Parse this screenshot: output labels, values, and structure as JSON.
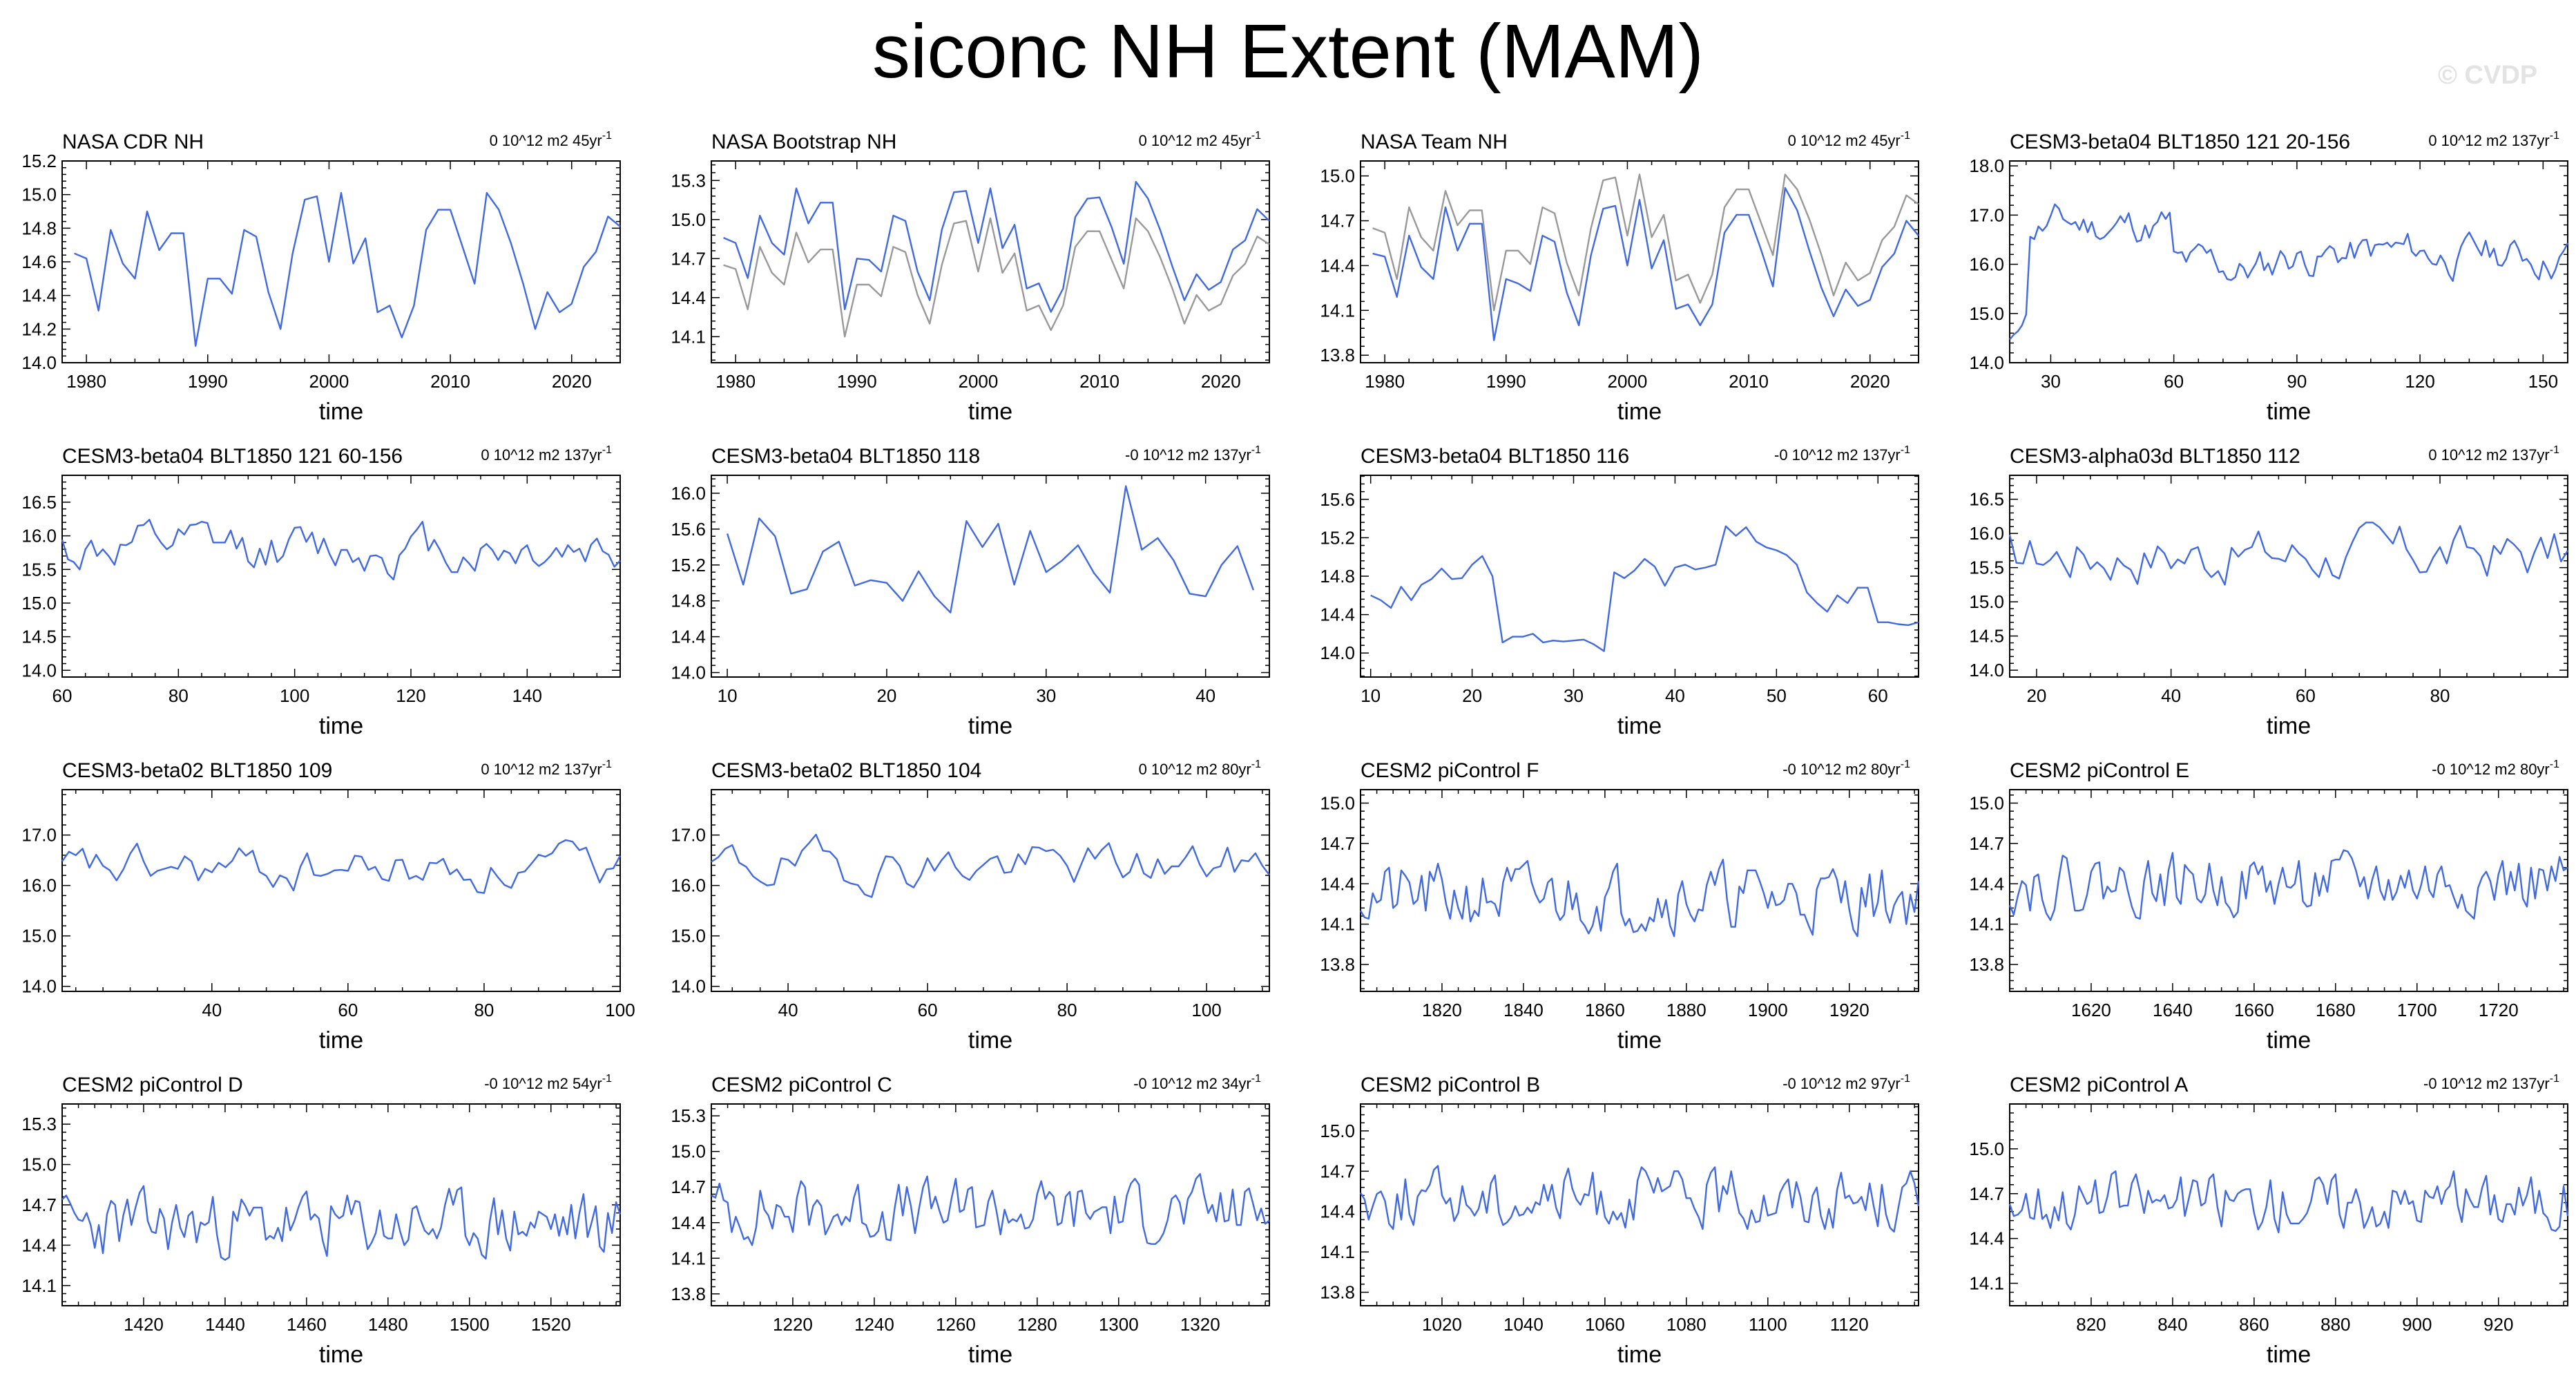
{
  "title": "siconc NH Extent (MAM)",
  "watermark": "© CVDP",
  "xlabel": "time",
  "colors": {
    "line": "#4169e1",
    "obs_overlay": "#999999"
  },
  "chart_data": [
    {
      "type": "line",
      "title": "NASA CDR NH",
      "trend": "0 10^12 m2 45yr",
      "trend_exp": "-1",
      "xlim": [
        1978,
        2024
      ],
      "xticks": [
        1980,
        1990,
        2000,
        2010,
        2020
      ],
      "ylim": [
        14.0,
        15.2
      ],
      "yticks": [
        "14.0",
        "14.2",
        "14.4",
        "14.6",
        "14.8",
        "15.0",
        "15.2"
      ],
      "series": [
        {
          "x0": 1979,
          "values": [
            14.65,
            14.62,
            14.31,
            14.79,
            14.59,
            14.5,
            14.9,
            14.67,
            14.77,
            14.77,
            14.1,
            14.5,
            14.5,
            14.41,
            14.79,
            14.75,
            14.42,
            14.2,
            14.65,
            14.97,
            14.99,
            14.6,
            15.01,
            14.59,
            14.74,
            14.3,
            14.34,
            14.15,
            14.34,
            14.79,
            14.91,
            14.91,
            14.69,
            14.47,
            15.01,
            14.91,
            14.71,
            14.47,
            14.2,
            14.42,
            14.3,
            14.35,
            14.57,
            14.66,
            14.87,
            14.81
          ]
        }
      ]
    },
    {
      "type": "line",
      "title": "NASA Bootstrap NH",
      "trend": "0 10^12 m2 45yr",
      "trend_exp": "-1",
      "xlim": [
        1978,
        2024
      ],
      "xticks": [
        1980,
        1990,
        2000,
        2010,
        2020
      ],
      "ylim": [
        13.9,
        15.45
      ],
      "yticks": [
        "14.1",
        "14.4",
        "14.7",
        "15.0",
        "15.3"
      ],
      "series": [
        {
          "x0": 1979,
          "values": [
            14.86,
            14.82,
            14.55,
            15.03,
            14.82,
            14.73,
            15.24,
            14.97,
            15.13,
            15.13,
            14.31,
            14.7,
            14.69,
            14.6,
            15.03,
            14.99,
            14.6,
            14.38,
            14.92,
            15.21,
            15.22,
            14.82,
            15.24,
            14.78,
            14.96,
            14.47,
            14.51,
            14.29,
            14.47,
            15.02,
            15.16,
            15.17,
            14.94,
            14.66,
            15.29,
            15.16,
            14.92,
            14.64,
            14.38,
            14.58,
            14.46,
            14.52,
            14.77,
            14.84,
            15.08,
            14.99
          ]
        },
        {
          "x0": 1979,
          "overlay": true,
          "values": [
            14.65,
            14.62,
            14.31,
            14.79,
            14.59,
            14.5,
            14.9,
            14.67,
            14.77,
            14.77,
            14.1,
            14.5,
            14.5,
            14.41,
            14.79,
            14.75,
            14.42,
            14.2,
            14.65,
            14.97,
            14.99,
            14.6,
            15.01,
            14.59,
            14.74,
            14.3,
            14.34,
            14.15,
            14.34,
            14.79,
            14.91,
            14.91,
            14.69,
            14.47,
            15.01,
            14.91,
            14.71,
            14.47,
            14.2,
            14.42,
            14.3,
            14.35,
            14.57,
            14.66,
            14.87,
            14.81
          ]
        }
      ]
    },
    {
      "type": "line",
      "title": "NASA Team NH",
      "trend": "0 10^12 m2 45yr",
      "trend_exp": "-1",
      "xlim": [
        1978,
        2024
      ],
      "xticks": [
        1980,
        1990,
        2000,
        2010,
        2020
      ],
      "ylim": [
        13.75,
        15.1
      ],
      "yticks": [
        "13.8",
        "14.1",
        "14.4",
        "14.7",
        "15.0"
      ],
      "series": [
        {
          "x0": 1979,
          "values": [
            14.48,
            14.46,
            14.19,
            14.6,
            14.39,
            14.31,
            14.79,
            14.5,
            14.68,
            14.68,
            13.9,
            14.31,
            14.28,
            14.23,
            14.6,
            14.56,
            14.22,
            14.0,
            14.47,
            14.78,
            14.8,
            14.4,
            14.84,
            14.38,
            14.57,
            14.11,
            14.14,
            14.0,
            14.14,
            14.62,
            14.74,
            14.74,
            14.51,
            14.26,
            14.92,
            14.77,
            14.5,
            14.25,
            14.06,
            14.24,
            14.13,
            14.17,
            14.39,
            14.48,
            14.7,
            14.6
          ]
        },
        {
          "x0": 1979,
          "overlay": true,
          "values": [
            14.65,
            14.62,
            14.31,
            14.79,
            14.59,
            14.5,
            14.9,
            14.67,
            14.77,
            14.77,
            14.1,
            14.5,
            14.5,
            14.41,
            14.79,
            14.75,
            14.42,
            14.2,
            14.65,
            14.97,
            14.99,
            14.6,
            15.01,
            14.59,
            14.74,
            14.3,
            14.34,
            14.15,
            14.34,
            14.79,
            14.91,
            14.91,
            14.69,
            14.47,
            15.01,
            14.91,
            14.71,
            14.47,
            14.2,
            14.42,
            14.3,
            14.35,
            14.57,
            14.66,
            14.87,
            14.81
          ]
        }
      ]
    },
    {
      "type": "line",
      "title": "CESM3-beta04 BLT1850 121 20-156",
      "trend": "0 10^12 m2 137yr",
      "trend_exp": "-1",
      "xlim": [
        20,
        156
      ],
      "xticks": [
        30,
        60,
        90,
        120,
        150
      ],
      "ylim": [
        14.0,
        18.1
      ],
      "yticks": [
        "14.0",
        "15.0",
        "16.0",
        "17.0",
        "18.0"
      ],
      "series": [
        {
          "x0": 20,
          "seed": 11,
          "kind": "cesm121a",
          "values": []
        }
      ]
    },
    {
      "type": "line",
      "title": "CESM3-beta04 BLT1850 121 60-156",
      "trend": "0 10^12 m2 137yr",
      "trend_exp": "-1",
      "xlim": [
        60,
        156
      ],
      "xticks": [
        60,
        80,
        100,
        120,
        140
      ],
      "ylim": [
        13.9,
        16.9
      ],
      "yticks": [
        "14.0",
        "14.5",
        "15.0",
        "15.5",
        "16.0",
        "16.5"
      ],
      "series": [
        {
          "x0": 60,
          "seed": 12,
          "kind": "cesm121b",
          "values": []
        }
      ]
    },
    {
      "type": "line",
      "title": "CESM3-beta04 BLT1850 118",
      "trend": "-0 10^12 m2 137yr",
      "trend_exp": "-1",
      "xlim": [
        9,
        44
      ],
      "xticks": [
        10,
        20,
        30,
        40
      ],
      "ylim": [
        13.95,
        16.2
      ],
      "yticks": [
        "14.0",
        "14.4",
        "14.8",
        "15.2",
        "15.6",
        "16.0"
      ],
      "series": [
        {
          "x0": 10,
          "values": [
            15.55,
            14.98,
            15.72,
            15.52,
            14.88,
            14.93,
            15.35,
            15.46,
            14.97,
            15.03,
            15.0,
            14.8,
            15.13,
            14.85,
            14.67,
            15.69,
            15.4,
            15.66,
            14.98,
            15.58,
            15.12,
            15.25,
            15.42,
            15.11,
            14.89,
            16.08,
            15.37,
            15.5,
            15.25,
            14.88,
            14.85,
            15.2,
            15.41,
            14.92
          ]
        }
      ]
    },
    {
      "type": "line",
      "title": "CESM3-beta04 BLT1850 116",
      "trend": "-0 10^12 m2 137yr",
      "trend_exp": "-1",
      "xlim": [
        9,
        64
      ],
      "xticks": [
        10,
        20,
        30,
        40,
        50,
        60
      ],
      "ylim": [
        13.75,
        15.85
      ],
      "yticks": [
        "14.0",
        "14.4",
        "14.8",
        "15.2",
        "15.6"
      ],
      "series": [
        {
          "x0": 10,
          "seed": 16,
          "kind": "cesm116",
          "values": []
        }
      ]
    },
    {
      "type": "line",
      "title": "CESM3-alpha03d BLT1850 112",
      "trend": "0 10^12 m2 137yr",
      "trend_exp": "-1",
      "xlim": [
        16,
        99
      ],
      "xticks": [
        20,
        40,
        60,
        80
      ],
      "ylim": [
        13.9,
        16.85
      ],
      "yticks": [
        "14.0",
        "14.5",
        "15.0",
        "15.5",
        "16.0",
        "16.5"
      ],
      "series": [
        {
          "x0": 16,
          "seed": 17,
          "kind": "cesm112",
          "values": []
        }
      ]
    },
    {
      "type": "line",
      "title": "CESM3-beta02 BLT1850 109",
      "trend": "0 10^12 m2 137yr",
      "trend_exp": "-1",
      "xlim": [
        18,
        100
      ],
      "xticks": [
        40,
        60,
        80,
        100
      ],
      "ylim": [
        13.9,
        17.9
      ],
      "yticks": [
        "14.0",
        "15.0",
        "16.0",
        "17.0"
      ],
      "series": [
        {
          "x0": 18,
          "seed": 18,
          "kind": "cesm109",
          "values": []
        }
      ]
    },
    {
      "type": "line",
      "title": "CESM3-beta02 BLT1850 104",
      "trend": "0 10^12 m2 80yr",
      "trend_exp": "-1",
      "xlim": [
        29,
        109
      ],
      "xticks": [
        40,
        60,
        80,
        100
      ],
      "ylim": [
        13.9,
        17.9
      ],
      "yticks": [
        "14.0",
        "15.0",
        "16.0",
        "17.0"
      ],
      "series": [
        {
          "x0": 29,
          "seed": 19,
          "kind": "cesm104",
          "values": []
        }
      ]
    },
    {
      "type": "line",
      "title": "CESM2 piControl F",
      "trend": "-0 10^12 m2 80yr",
      "trend_exp": "-1",
      "xlim": [
        1800,
        1937
      ],
      "xticks": [
        1820,
        1840,
        1860,
        1880,
        1900,
        1920
      ],
      "ylim": [
        13.6,
        15.1
      ],
      "yticks": [
        "13.8",
        "14.1",
        "14.4",
        "14.7",
        "15.0"
      ],
      "series": [
        {
          "x0": 1800,
          "seed": 21,
          "kind": "pic",
          "mean": 14.3,
          "amp": 0.28,
          "values": []
        }
      ]
    },
    {
      "type": "line",
      "title": "CESM2 piControl E",
      "trend": "-0 10^12 m2 80yr",
      "trend_exp": "-1",
      "xlim": [
        1600,
        1737
      ],
      "xticks": [
        1620,
        1640,
        1660,
        1680,
        1700,
        1720
      ],
      "ylim": [
        13.6,
        15.1
      ],
      "yticks": [
        "13.8",
        "14.1",
        "14.4",
        "14.7",
        "15.0"
      ],
      "series": [
        {
          "x0": 1600,
          "seed": 22,
          "kind": "pic",
          "mean": 14.4,
          "amp": 0.25,
          "values": []
        }
      ]
    },
    {
      "type": "line",
      "title": "CESM2 piControl D",
      "trend": "-0 10^12 m2 54yr",
      "trend_exp": "-1",
      "xlim": [
        1400,
        1537
      ],
      "xticks": [
        1420,
        1440,
        1460,
        1480,
        1500,
        1520
      ],
      "ylim": [
        13.95,
        15.45
      ],
      "yticks": [
        "14.1",
        "14.4",
        "14.7",
        "15.0",
        "15.3"
      ],
      "series": [
        {
          "x0": 1400,
          "seed": 23,
          "kind": "pic",
          "mean": 14.55,
          "amp": 0.28,
          "values": []
        }
      ]
    },
    {
      "type": "line",
      "title": "CESM2 piControl C",
      "trend": "-0 10^12 m2 34yr",
      "trend_exp": "-1",
      "xlim": [
        1200,
        1337
      ],
      "xticks": [
        1220,
        1240,
        1260,
        1280,
        1300,
        1320
      ],
      "ylim": [
        13.7,
        15.4
      ],
      "yticks": [
        "13.8",
        "14.1",
        "14.4",
        "14.7",
        "15.0",
        "15.3"
      ],
      "series": [
        {
          "x0": 1200,
          "seed": 24,
          "kind": "pic",
          "mean": 14.5,
          "amp": 0.3,
          "values": []
        }
      ]
    },
    {
      "type": "line",
      "title": "CESM2 piControl B",
      "trend": "-0 10^12 m2 97yr",
      "trend_exp": "-1",
      "xlim": [
        1000,
        1137
      ],
      "xticks": [
        1020,
        1040,
        1060,
        1080,
        1100,
        1120
      ],
      "ylim": [
        13.7,
        15.2
      ],
      "yticks": [
        "13.8",
        "14.1",
        "14.4",
        "14.7",
        "15.0"
      ],
      "series": [
        {
          "x0": 1000,
          "seed": 25,
          "kind": "pic",
          "mean": 14.5,
          "amp": 0.25,
          "values": []
        }
      ]
    },
    {
      "type": "line",
      "title": "CESM2 piControl A",
      "trend": "-0 10^12 m2 137yr",
      "trend_exp": "-1",
      "xlim": [
        800,
        937
      ],
      "xticks": [
        820,
        840,
        860,
        880,
        900,
        920
      ],
      "ylim": [
        13.95,
        15.3
      ],
      "yticks": [
        "14.1",
        "14.4",
        "14.7",
        "15.0"
      ],
      "series": [
        {
          "x0": 800,
          "seed": 26,
          "kind": "pic",
          "mean": 14.65,
          "amp": 0.22,
          "values": []
        }
      ]
    }
  ]
}
